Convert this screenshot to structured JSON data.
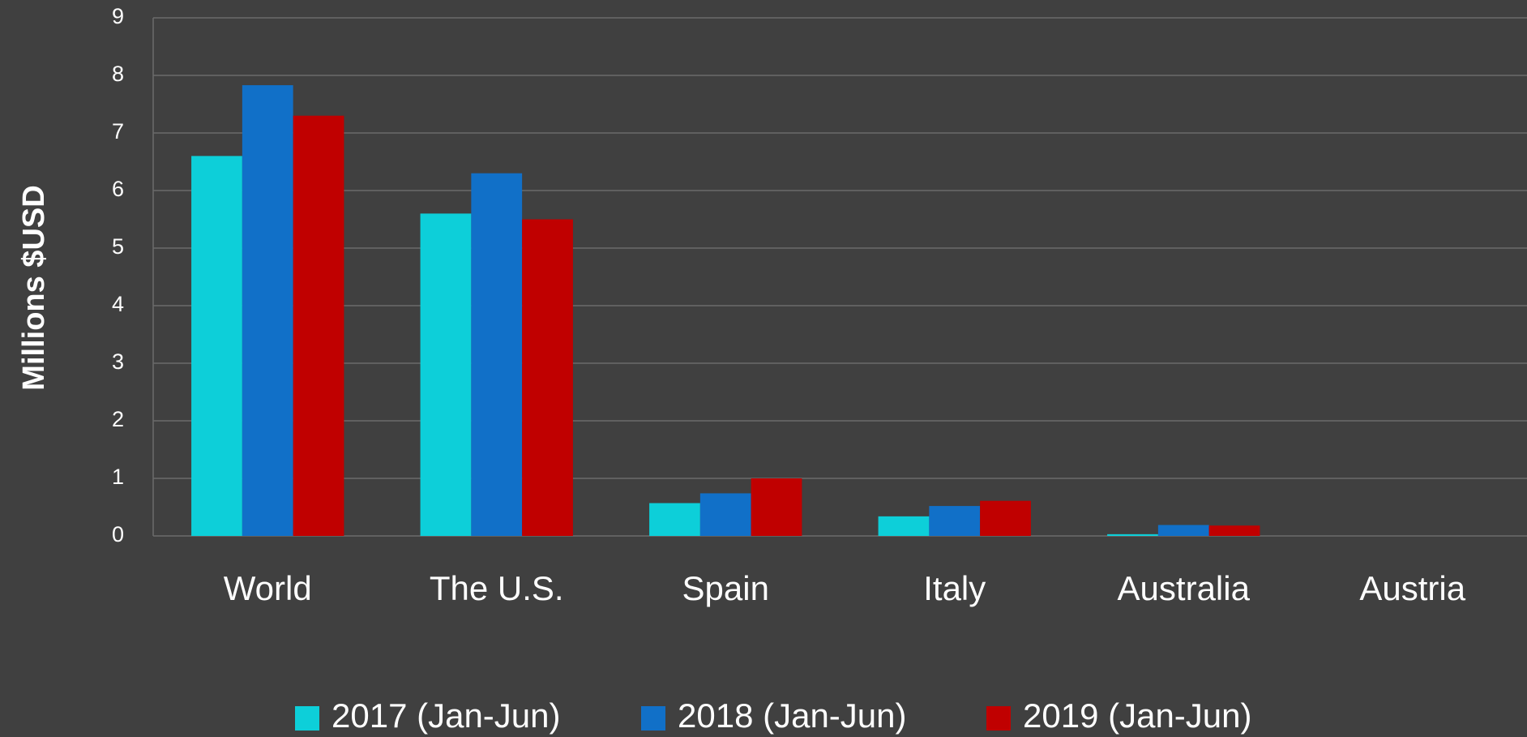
{
  "chart_data": {
    "type": "bar",
    "y_label": "Millions $USD",
    "categories": [
      "World",
      "The U.S.",
      "Spain",
      "Italy",
      "Australia",
      "Austria"
    ],
    "series": [
      {
        "name": "2017 (Jan-Jun)",
        "color": "#0dcfd9",
        "values": [
          6.6,
          5.6,
          0.57,
          0.34,
          0.03,
          0
        ]
      },
      {
        "name": "2018 (Jan-Jun)",
        "color": "#1170c8",
        "values": [
          7.83,
          6.3,
          0.74,
          0.52,
          0.19,
          0
        ]
      },
      {
        "name": "2019 (Jan-Jun)",
        "color": "#c00000",
        "values": [
          7.3,
          5.5,
          1.0,
          0.61,
          0.18,
          0
        ]
      }
    ],
    "ylim": [
      0,
      9
    ],
    "yticks": [
      0,
      1,
      2,
      3,
      4,
      5,
      6,
      7,
      8,
      9
    ],
    "grid": true,
    "legend": "bottom"
  }
}
